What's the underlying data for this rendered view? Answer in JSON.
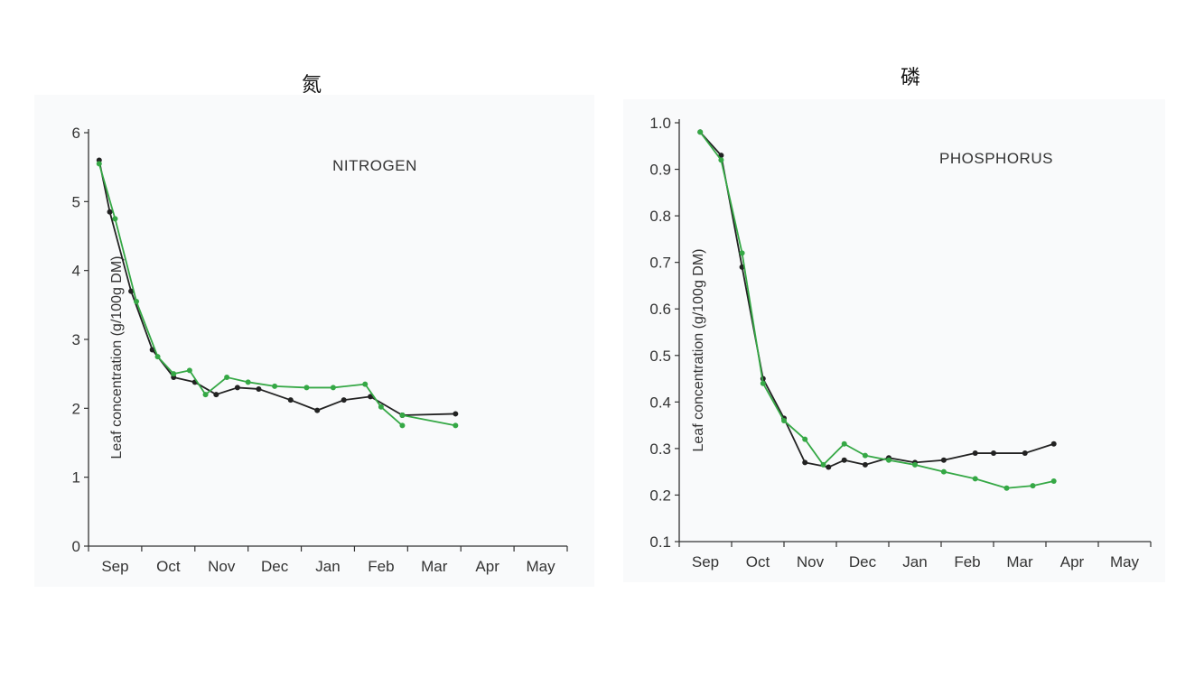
{
  "titles": {
    "left": "氮",
    "right": "磷"
  },
  "colors": {
    "series_a": "#222222",
    "series_b": "#35a845",
    "axis": "#333333"
  },
  "chart_data": [
    {
      "type": "line",
      "title": "NITROGEN",
      "xlabel": "",
      "ylabel": "Leaf concentration (g/100g DM)",
      "x_labels": [
        "Sep",
        "Oct",
        "Nov",
        "Dec",
        "Jan",
        "Feb",
        "Mar",
        "Apr",
        "May"
      ],
      "ylim": [
        0,
        6
      ],
      "yticks": [
        "0",
        "1",
        "2",
        "3",
        "4",
        "5",
        "6"
      ],
      "ytick_values": [
        0,
        1,
        2,
        3,
        4,
        5,
        6
      ],
      "xlim": [
        0,
        9
      ],
      "series": [
        {
          "color": "#222222",
          "x": [
            0.2,
            0.4,
            0.8,
            1.2,
            1.6,
            2.0,
            2.4,
            2.8,
            3.2,
            3.8,
            4.3,
            4.8,
            5.3,
            5.9
          ],
          "y": [
            5.6,
            4.85,
            3.7,
            2.85,
            2.45,
            2.38,
            2.2,
            2.3,
            2.28,
            2.12,
            1.97,
            2.12,
            2.17,
            1.9
          ]
        },
        {
          "color": "#35a845",
          "x": [
            0.2,
            0.5,
            0.9,
            1.3,
            1.6,
            1.9,
            2.2,
            2.6,
            3.0,
            3.5,
            4.1,
            4.6,
            5.2,
            5.5,
            5.9
          ],
          "y": [
            5.55,
            4.75,
            3.55,
            2.75,
            2.5,
            2.55,
            2.2,
            2.45,
            2.38,
            2.32,
            2.3,
            2.3,
            2.35,
            2.02,
            1.75
          ]
        },
        {
          "color": "#222222",
          "x": [
            5.9,
            6.9
          ],
          "y": [
            1.9,
            1.92
          ]
        },
        {
          "color": "#35a845",
          "x": [
            5.9,
            6.9
          ],
          "y": [
            1.9,
            1.75
          ]
        }
      ]
    },
    {
      "type": "line",
      "title": "PHOSPHORUS",
      "xlabel": "",
      "ylabel": "Leaf concentration (g/100g DM)",
      "x_labels": [
        "Sep",
        "Oct",
        "Nov",
        "Dec",
        "Jan",
        "Feb",
        "Mar",
        "Apr",
        "May"
      ],
      "ylim": [
        0.1,
        1.0
      ],
      "yticks": [
        "0.1",
        "0.2",
        "0.3",
        "0.4",
        "0.5",
        "0.6",
        "0.7",
        "0.8",
        "0.9",
        "1.0"
      ],
      "ytick_values": [
        0.1,
        0.2,
        0.3,
        0.4,
        0.5,
        0.6,
        0.7,
        0.8,
        0.9,
        1.0
      ],
      "xlim": [
        0,
        9
      ],
      "series": [
        {
          "color": "#222222",
          "x": [
            0.4,
            0.8,
            1.2,
            1.6,
            2.0,
            2.4,
            2.85,
            3.15,
            3.55,
            4.0,
            4.5,
            5.05,
            5.65,
            6.0,
            6.6,
            7.15
          ],
          "y": [
            0.98,
            0.93,
            0.69,
            0.45,
            0.365,
            0.27,
            0.26,
            0.275,
            0.265,
            0.28,
            0.27,
            0.275,
            0.29,
            0.29,
            0.29,
            0.31
          ]
        },
        {
          "color": "#35a845",
          "x": [
            0.4,
            0.8,
            1.2,
            1.6,
            2.0,
            2.4,
            2.75,
            3.15,
            3.55,
            4.0,
            4.5,
            5.05,
            5.65,
            6.25,
            6.75,
            7.15
          ],
          "y": [
            0.98,
            0.92,
            0.72,
            0.44,
            0.36,
            0.32,
            0.265,
            0.31,
            0.285,
            0.275,
            0.265,
            0.25,
            0.235,
            0.215,
            0.22,
            0.23
          ]
        }
      ]
    }
  ]
}
